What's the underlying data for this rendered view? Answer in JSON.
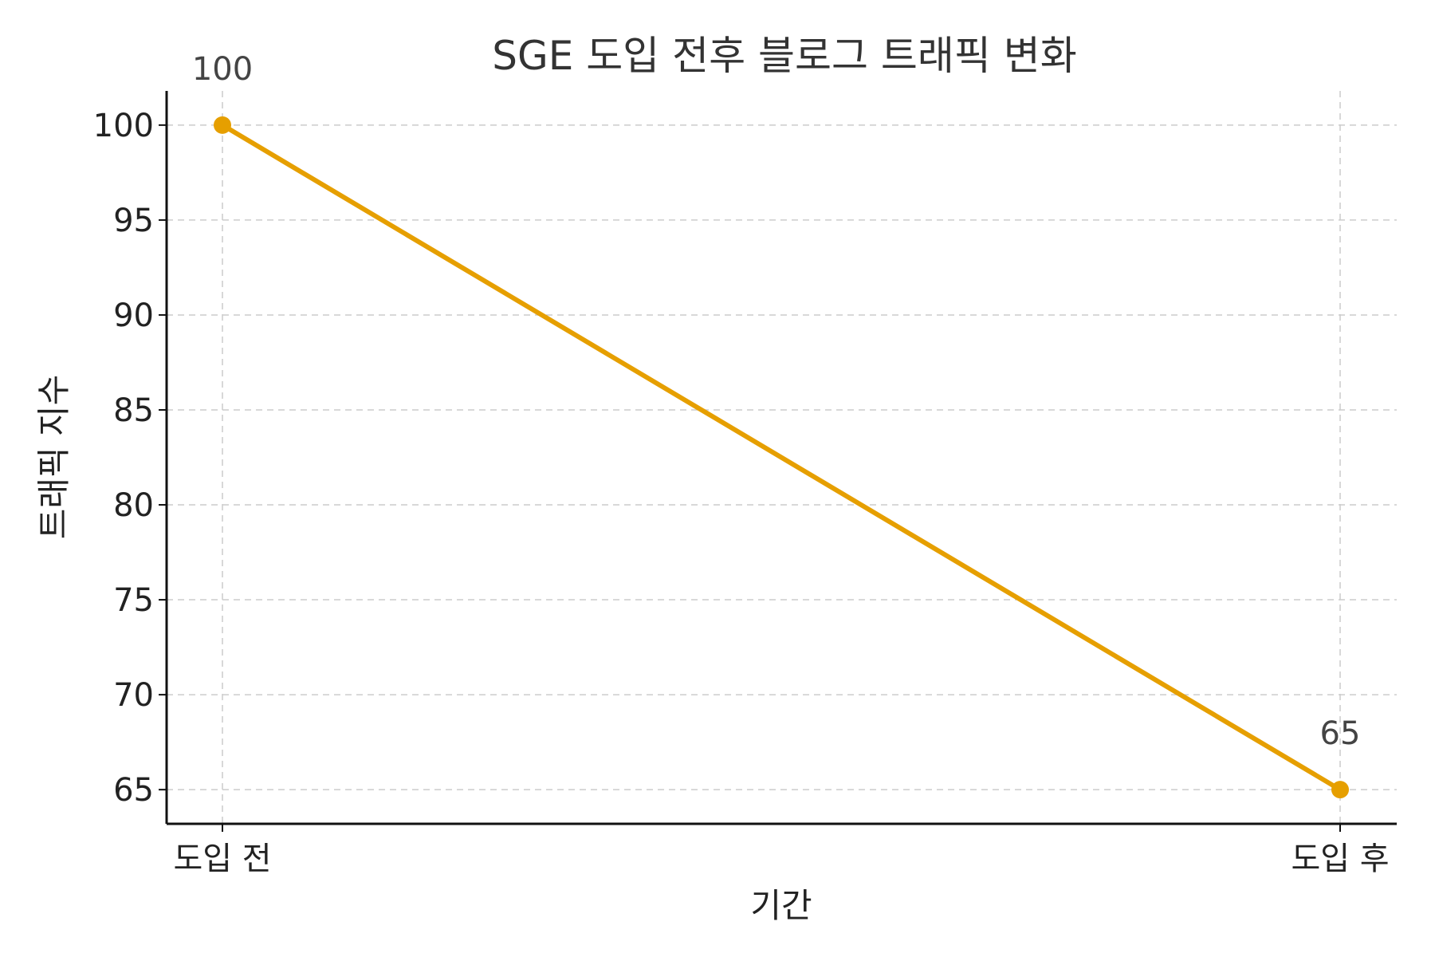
{
  "chart_data": {
    "type": "line",
    "title": "SGE 도입 전후 블로그 트래픽 변화",
    "xlabel": "기간",
    "ylabel": "트래픽 지수",
    "categories": [
      "도입 전",
      "도입 후"
    ],
    "series": [
      {
        "values": [
          100,
          65
        ],
        "color": "#E69F00"
      }
    ],
    "data_labels": [
      "100",
      "65"
    ],
    "ylim": [
      63.2,
      101.8
    ],
    "yticks": [
      65,
      70,
      75,
      80,
      85,
      90,
      95,
      100
    ],
    "grid": true,
    "legend": "none"
  }
}
